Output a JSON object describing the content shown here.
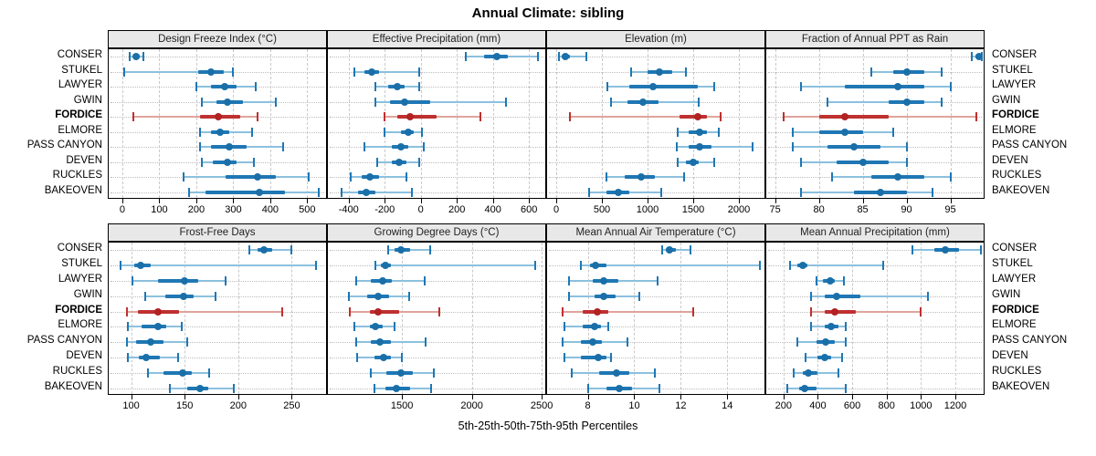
{
  "title": "Annual Climate: sibling",
  "caption": "5th-25th-50th-75th-95th Percentiles",
  "sites": [
    "CONSER",
    "STUKEL",
    "LAWYER",
    "GWIN",
    "FORDICE",
    "ELMORE",
    "PASS CANYON",
    "DEVEN",
    "RUCKLES",
    "BAKEOVEN"
  ],
  "highlight_site": "FORDICE",
  "colors": {
    "series": "#1a6fa8",
    "series_mid": "#1f77b4",
    "series_light": "#8cc0de",
    "highlight": "#b22222",
    "highlight_mid": "#bf3030",
    "highlight_light": "#e0a49c",
    "strip_bg": "#e8e8e8",
    "grid": "#c9c9c9",
    "panel_border": "#000000"
  },
  "chart_data": [
    {
      "type": "dotplot-whisker",
      "title": "Design Freeze Index (°C)",
      "xlim": [
        -37,
        551
      ],
      "ticks": [
        0,
        100,
        200,
        300,
        400,
        500
      ],
      "series": [
        {
          "site": "CONSER",
          "p": [
            20,
            30,
            38,
            47,
            58
          ]
        },
        {
          "site": "STUKEL",
          "p": [
            5,
            205,
            240,
            275,
            300
          ]
        },
        {
          "site": "LAWYER",
          "p": [
            200,
            240,
            277,
            310,
            360
          ]
        },
        {
          "site": "GWIN",
          "p": [
            215,
            255,
            285,
            325,
            415
          ]
        },
        {
          "site": "FORDICE",
          "p": [
            30,
            210,
            260,
            320,
            365
          ]
        },
        {
          "site": "ELMORE",
          "p": [
            210,
            240,
            265,
            290,
            350
          ]
        },
        {
          "site": "PASS CANYON",
          "p": [
            210,
            240,
            290,
            335,
            435
          ]
        },
        {
          "site": "DEVEN",
          "p": [
            215,
            245,
            285,
            310,
            355
          ]
        },
        {
          "site": "RUCKLES",
          "p": [
            165,
            280,
            365,
            415,
            505
          ]
        },
        {
          "site": "BAKEOVEN",
          "p": [
            180,
            225,
            370,
            440,
            530
          ]
        }
      ]
    },
    {
      "type": "dotplot-whisker",
      "title": "Effective Precipitation (mm)",
      "xlim": [
        -515,
        690
      ],
      "ticks": [
        -400,
        -200,
        0,
        200,
        400,
        600
      ],
      "series": [
        {
          "site": "CONSER",
          "p": [
            250,
            350,
            420,
            480,
            650
          ]
        },
        {
          "site": "STUKEL",
          "p": [
            -370,
            -310,
            -270,
            -230,
            -10
          ]
        },
        {
          "site": "LAWYER",
          "p": [
            -250,
            -180,
            -130,
            -90,
            -10
          ]
        },
        {
          "site": "GWIN",
          "p": [
            -250,
            -170,
            -90,
            50,
            470
          ]
        },
        {
          "site": "FORDICE",
          "p": [
            -200,
            -130,
            -60,
            90,
            330
          ]
        },
        {
          "site": "ELMORE",
          "p": [
            -200,
            -110,
            -70,
            -40,
            5
          ]
        },
        {
          "site": "PASS CANYON",
          "p": [
            -310,
            -160,
            -110,
            -70,
            15
          ]
        },
        {
          "site": "DEVEN",
          "p": [
            -240,
            -160,
            -120,
            -80,
            -10
          ]
        },
        {
          "site": "RUCKLES",
          "p": [
            -390,
            -330,
            -280,
            -230,
            -80
          ]
        },
        {
          "site": "BAKEOVEN",
          "p": [
            -440,
            -350,
            -300,
            -250,
            -50
          ]
        }
      ]
    },
    {
      "type": "dotplot-whisker",
      "title": "Elevation (m)",
      "xlim": [
        -100,
        2280
      ],
      "ticks": [
        0,
        500,
        1000,
        1500,
        2000
      ],
      "series": [
        {
          "site": "CONSER",
          "p": [
            30,
            60,
            100,
            150,
            330
          ]
        },
        {
          "site": "STUKEL",
          "p": [
            820,
            1000,
            1130,
            1270,
            1420
          ]
        },
        {
          "site": "LAWYER",
          "p": [
            560,
            800,
            1060,
            1550,
            1730
          ]
        },
        {
          "site": "GWIN",
          "p": [
            600,
            780,
            950,
            1120,
            1560
          ]
        },
        {
          "site": "FORDICE",
          "p": [
            150,
            1350,
            1550,
            1650,
            1800
          ]
        },
        {
          "site": "ELMORE",
          "p": [
            1330,
            1450,
            1570,
            1650,
            1780
          ]
        },
        {
          "site": "PASS CANYON",
          "p": [
            1320,
            1450,
            1570,
            1700,
            2150
          ]
        },
        {
          "site": "DEVEN",
          "p": [
            1330,
            1420,
            1500,
            1560,
            1730
          ]
        },
        {
          "site": "RUCKLES",
          "p": [
            550,
            750,
            930,
            1080,
            1400
          ]
        },
        {
          "site": "BAKEOVEN",
          "p": [
            360,
            550,
            680,
            800,
            1150
          ]
        }
      ]
    },
    {
      "type": "dotplot-whisker",
      "title": "Fraction of Annual PPT as Rain",
      "xlim": [
        74.0,
        98.8
      ],
      "ticks": [
        75,
        80,
        85,
        90,
        95
      ],
      "series": [
        {
          "site": "CONSER",
          "p": [
            97.4,
            97.9,
            98.3,
            98.5,
            98.6
          ]
        },
        {
          "site": "STUKEL",
          "p": [
            86,
            88.5,
            90,
            92,
            94
          ]
        },
        {
          "site": "LAWYER",
          "p": [
            78,
            83,
            89,
            92,
            95
          ]
        },
        {
          "site": "GWIN",
          "p": [
            81,
            88,
            90,
            92,
            94
          ]
        },
        {
          "site": "FORDICE",
          "p": [
            76,
            80,
            83,
            88,
            98
          ]
        },
        {
          "site": "ELMORE",
          "p": [
            77,
            80,
            83,
            85,
            88.5
          ]
        },
        {
          "site": "PASS CANYON",
          "p": [
            77,
            81,
            84,
            87,
            90
          ]
        },
        {
          "site": "DEVEN",
          "p": [
            78,
            82,
            85,
            88,
            90
          ]
        },
        {
          "site": "RUCKLES",
          "p": [
            81.5,
            86,
            89,
            92,
            95
          ]
        },
        {
          "site": "BAKEOVEN",
          "p": [
            78,
            84,
            87,
            90,
            93
          ]
        }
      ]
    },
    {
      "type": "dotplot-whisker",
      "title": "Frost-Free Days",
      "xlim": [
        79,
        282
      ],
      "ticks": [
        100,
        150,
        200,
        250
      ],
      "series": [
        {
          "site": "CONSER",
          "p": [
            210,
            218,
            224,
            232,
            250
          ]
        },
        {
          "site": "STUKEL",
          "p": [
            90,
            103,
            109,
            118,
            273
          ]
        },
        {
          "site": "LAWYER",
          "p": [
            101,
            125,
            150,
            163,
            188
          ]
        },
        {
          "site": "GWIN",
          "p": [
            113,
            132,
            149,
            158,
            179
          ]
        },
        {
          "site": "FORDICE",
          "p": [
            96,
            106,
            125,
            145,
            241
          ]
        },
        {
          "site": "ELMORE",
          "p": [
            97,
            110,
            125,
            133,
            147
          ]
        },
        {
          "site": "PASS CANYON",
          "p": [
            96,
            105,
            118,
            130,
            152
          ]
        },
        {
          "site": "DEVEN",
          "p": [
            97,
            107,
            114,
            127,
            144
          ]
        },
        {
          "site": "RUCKLES",
          "p": [
            116,
            130,
            148,
            157,
            173
          ]
        },
        {
          "site": "BAKEOVEN",
          "p": [
            136,
            152,
            164,
            172,
            196
          ]
        }
      ]
    },
    {
      "type": "dotplot-whisker",
      "title": "Growing Degree Days (°C)",
      "xlim": [
        970,
        2525
      ],
      "ticks": [
        1500,
        2000,
        2500
      ],
      "series": [
        {
          "site": "CONSER",
          "p": [
            1400,
            1450,
            1490,
            1560,
            1700
          ]
        },
        {
          "site": "STUKEL",
          "p": [
            1310,
            1350,
            1380,
            1420,
            2450
          ]
        },
        {
          "site": "LAWYER",
          "p": [
            1170,
            1280,
            1360,
            1430,
            1660
          ]
        },
        {
          "site": "GWIN",
          "p": [
            1120,
            1250,
            1330,
            1410,
            1550
          ]
        },
        {
          "site": "FORDICE",
          "p": [
            1130,
            1270,
            1330,
            1480,
            1770
          ]
        },
        {
          "site": "ELMORE",
          "p": [
            1160,
            1270,
            1310,
            1360,
            1450
          ]
        },
        {
          "site": "PASS CANYON",
          "p": [
            1170,
            1280,
            1340,
            1420,
            1670
          ]
        },
        {
          "site": "DEVEN",
          "p": [
            1180,
            1300,
            1370,
            1420,
            1500
          ]
        },
        {
          "site": "RUCKLES",
          "p": [
            1280,
            1390,
            1490,
            1580,
            1730
          ]
        },
        {
          "site": "BAKEOVEN",
          "p": [
            1300,
            1380,
            1460,
            1560,
            1710
          ]
        }
      ]
    },
    {
      "type": "dotplot-whisker",
      "title": "Mean Annual Air Temperature (°C)",
      "xlim": [
        6.25,
        15.6
      ],
      "ticks": [
        8,
        10,
        12,
        14
      ],
      "series": [
        {
          "site": "CONSER",
          "p": [
            11.2,
            11.35,
            11.5,
            11.8,
            12.4
          ]
        },
        {
          "site": "STUKEL",
          "p": [
            7.7,
            8.1,
            8.35,
            8.8,
            15.4
          ]
        },
        {
          "site": "LAWYER",
          "p": [
            7.2,
            8.2,
            8.7,
            9.3,
            11.0
          ]
        },
        {
          "site": "GWIN",
          "p": [
            7.2,
            8.3,
            8.7,
            9.2,
            10.2
          ]
        },
        {
          "site": "FORDICE",
          "p": [
            6.9,
            7.8,
            8.4,
            8.9,
            12.55
          ]
        },
        {
          "site": "ELMORE",
          "p": [
            7.0,
            7.8,
            8.3,
            8.55,
            8.9
          ]
        },
        {
          "site": "PASS CANYON",
          "p": [
            6.9,
            7.7,
            8.2,
            8.6,
            9.7
          ]
        },
        {
          "site": "DEVEN",
          "p": [
            7.0,
            7.7,
            8.45,
            8.8,
            9.0
          ]
        },
        {
          "site": "RUCKLES",
          "p": [
            7.3,
            8.5,
            9.25,
            9.8,
            10.9
          ]
        },
        {
          "site": "BAKEOVEN",
          "p": [
            8.0,
            8.8,
            9.35,
            9.9,
            11.1
          ]
        }
      ]
    },
    {
      "type": "dotplot-whisker",
      "title": "Mean Annual Precipitation (mm)",
      "xlim": [
        100,
        1365
      ],
      "ticks": [
        200,
        400,
        600,
        800,
        1000,
        1200
      ],
      "series": [
        {
          "site": "CONSER",
          "p": [
            950,
            1080,
            1140,
            1220,
            1350
          ]
        },
        {
          "site": "STUKEL",
          "p": [
            240,
            280,
            310,
            340,
            780
          ]
        },
        {
          "site": "LAWYER",
          "p": [
            390,
            430,
            470,
            500,
            550
          ]
        },
        {
          "site": "GWIN",
          "p": [
            360,
            440,
            510,
            650,
            1040
          ]
        },
        {
          "site": "FORDICE",
          "p": [
            360,
            440,
            500,
            620,
            1000
          ]
        },
        {
          "site": "ELMORE",
          "p": [
            360,
            440,
            480,
            520,
            560
          ]
        },
        {
          "site": "PASS CANYON",
          "p": [
            280,
            390,
            445,
            500,
            560
          ]
        },
        {
          "site": "DEVEN",
          "p": [
            330,
            400,
            440,
            480,
            540
          ]
        },
        {
          "site": "RUCKLES",
          "p": [
            260,
            310,
            345,
            400,
            520
          ]
        },
        {
          "site": "BAKEOVEN",
          "p": [
            220,
            290,
            325,
            390,
            560
          ]
        }
      ]
    }
  ]
}
